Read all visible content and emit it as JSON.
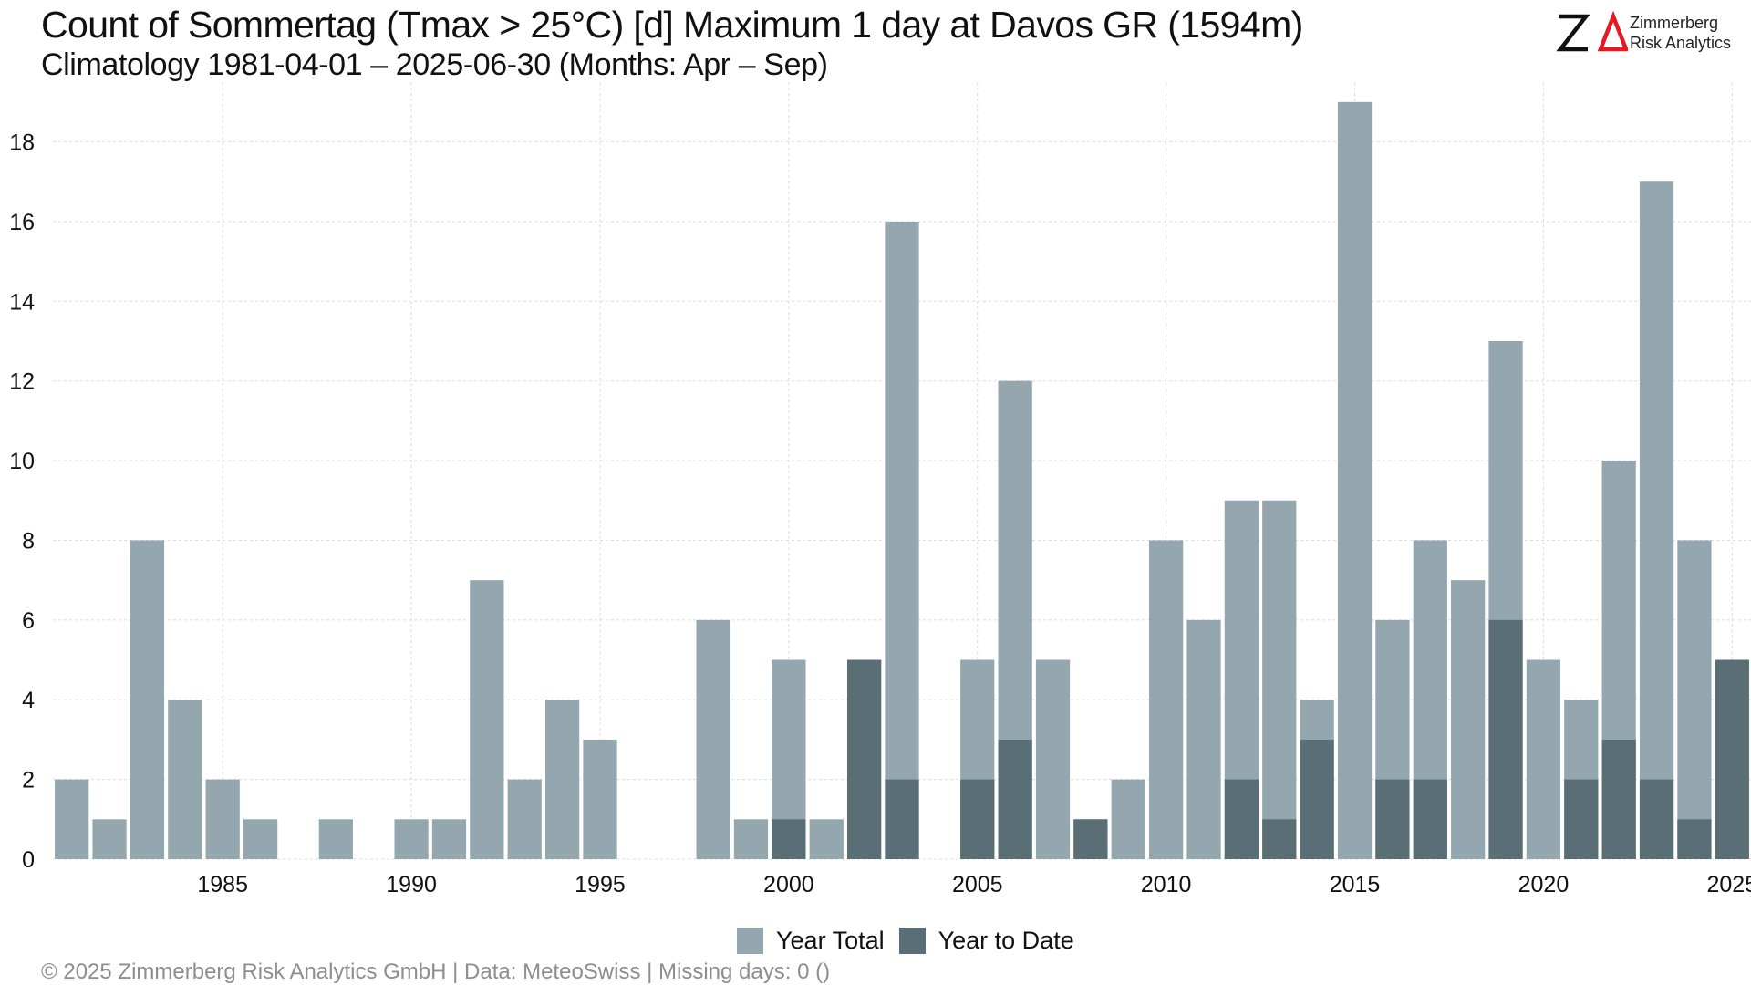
{
  "header": {
    "title": "Count of Sommertag (Tmax > 25°C) [d] Maximum 1 day at Davos  GR (1594m)",
    "subtitle": "Climatology 1981-04-01 – 2025-06-30 (Months: Apr – Sep)"
  },
  "logo": {
    "line1": "Zimmerberg",
    "line2": "Risk Analytics",
    "colors": {
      "z": "#111111",
      "delta": "#e31b23"
    }
  },
  "footer": {
    "text": "©  2025 Zimmerberg Risk Analytics GmbH | Data: MeteoSwiss | Missing days: 0 ()"
  },
  "chart_data": {
    "type": "bar",
    "x": [
      1981,
      1982,
      1983,
      1984,
      1985,
      1986,
      1987,
      1988,
      1989,
      1990,
      1991,
      1992,
      1993,
      1994,
      1995,
      1996,
      1997,
      1998,
      1999,
      2000,
      2001,
      2002,
      2003,
      2004,
      2005,
      2006,
      2007,
      2008,
      2009,
      2010,
      2011,
      2012,
      2013,
      2014,
      2015,
      2016,
      2017,
      2018,
      2019,
      2020,
      2021,
      2022,
      2023,
      2024,
      2025
    ],
    "series": [
      {
        "name": "Year Total",
        "color": "#95a7ae",
        "values": [
          2,
          1,
          8,
          4,
          2,
          1,
          0,
          1,
          0,
          1,
          1,
          7,
          2,
          4,
          3,
          0,
          0,
          6,
          1,
          5,
          1,
          5,
          16,
          0,
          5,
          12,
          5,
          1,
          2,
          8,
          6,
          9,
          9,
          4,
          19,
          6,
          8,
          7,
          13,
          5,
          4,
          10,
          17,
          8,
          5
        ]
      },
      {
        "name": "Year to Date",
        "color": "#596e75",
        "values": [
          0,
          0,
          0,
          0,
          0,
          0,
          0,
          0,
          0,
          0,
          0,
          0,
          0,
          0,
          0,
          0,
          0,
          0,
          0,
          1,
          0,
          5,
          2,
          0,
          2,
          3,
          0,
          1,
          0,
          0,
          0,
          2,
          1,
          3,
          0,
          2,
          2,
          0,
          6,
          0,
          2,
          3,
          2,
          1,
          5
        ]
      }
    ],
    "xticks": [
      "1985",
      "1990",
      "1995",
      "2000",
      "2005",
      "2010",
      "2015",
      "2020",
      "2025"
    ],
    "yticks": [
      "0",
      "2",
      "4",
      "6",
      "8",
      "10",
      "12",
      "14",
      "16",
      "18"
    ],
    "ylim": [
      0,
      19.5
    ],
    "xlim": [
      1980.5,
      2025.5
    ],
    "grid": true,
    "legend": "bottom-center"
  }
}
